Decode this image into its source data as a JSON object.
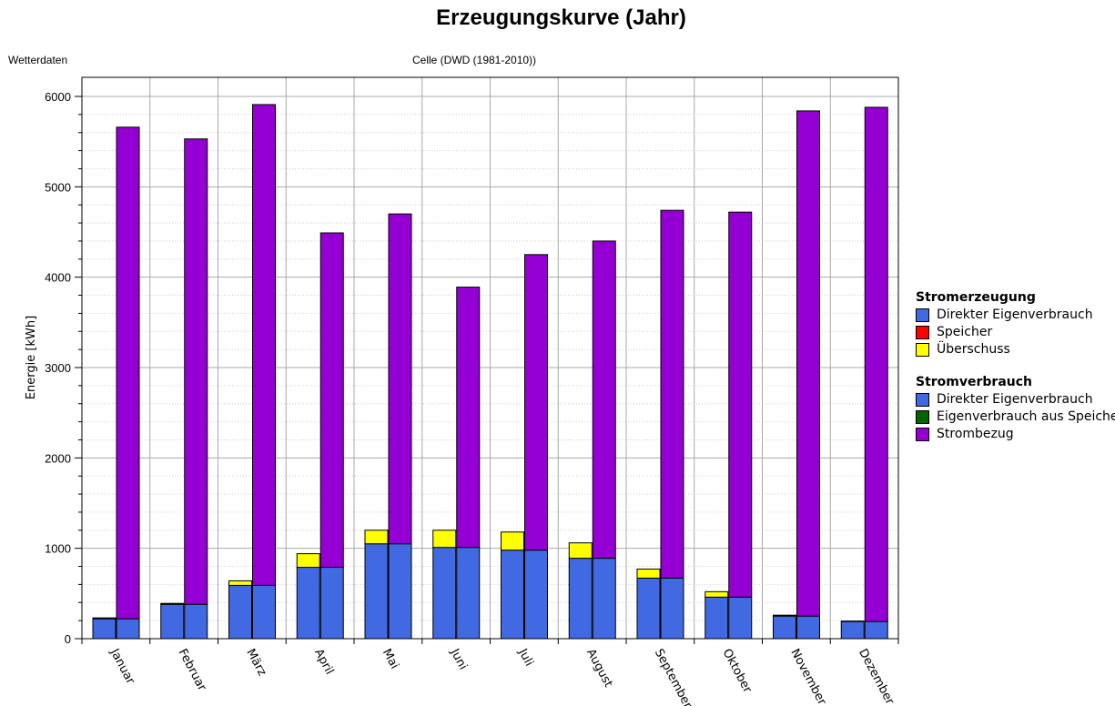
{
  "chart_data": {
    "type": "bar",
    "title": "Erzeugungskurve (Jahr)",
    "weather_label": "Wetterdaten",
    "weather_value": "Celle (DWD (1981-2010))",
    "ylabel": "Energie [kWh]",
    "ylim": [
      0,
      6000
    ],
    "yticks": [
      0,
      1000,
      2000,
      3000,
      4000,
      5000,
      6000
    ],
    "grid": true,
    "legend_position": "right",
    "categories": [
      "Januar",
      "Februar",
      "März",
      "April",
      "Mai",
      "Juni",
      "Juli",
      "August",
      "September",
      "Oktober",
      "November",
      "Dezember"
    ],
    "groups": [
      {
        "name": "Stromerzeugung",
        "series": [
          {
            "name": "Direkter Eigenverbrauch",
            "color": "#4169E1",
            "values": [
              220,
              380,
              590,
              790,
              1050,
              1010,
              980,
              890,
              670,
              460,
              250,
              190
            ]
          },
          {
            "name": "Speicher",
            "color": "#FF0000",
            "values": [
              0,
              0,
              0,
              0,
              0,
              0,
              0,
              0,
              0,
              0,
              0,
              0
            ]
          },
          {
            "name": "Überschuss",
            "color": "#FFFF00",
            "values": [
              10,
              10,
              50,
              150,
              150,
              190,
              200,
              170,
              100,
              60,
              10,
              5
            ]
          }
        ]
      },
      {
        "name": "Stromverbrauch",
        "series": [
          {
            "name": "Direkter Eigenverbrauch",
            "color": "#4169E1",
            "values": [
              220,
              380,
              590,
              790,
              1050,
              1010,
              980,
              890,
              670,
              460,
              250,
              190
            ]
          },
          {
            "name": "Eigenverbrauch aus Speicher",
            "color": "#006400",
            "values": [
              0,
              0,
              0,
              0,
              0,
              0,
              0,
              0,
              0,
              0,
              0,
              0
            ]
          },
          {
            "name": "Strombezug",
            "color": "#9400D3",
            "values": [
              5440,
              5150,
              5320,
              3700,
              3650,
              2880,
              3270,
              3510,
              4070,
              4260,
              5590,
              5690
            ]
          }
        ]
      }
    ]
  }
}
